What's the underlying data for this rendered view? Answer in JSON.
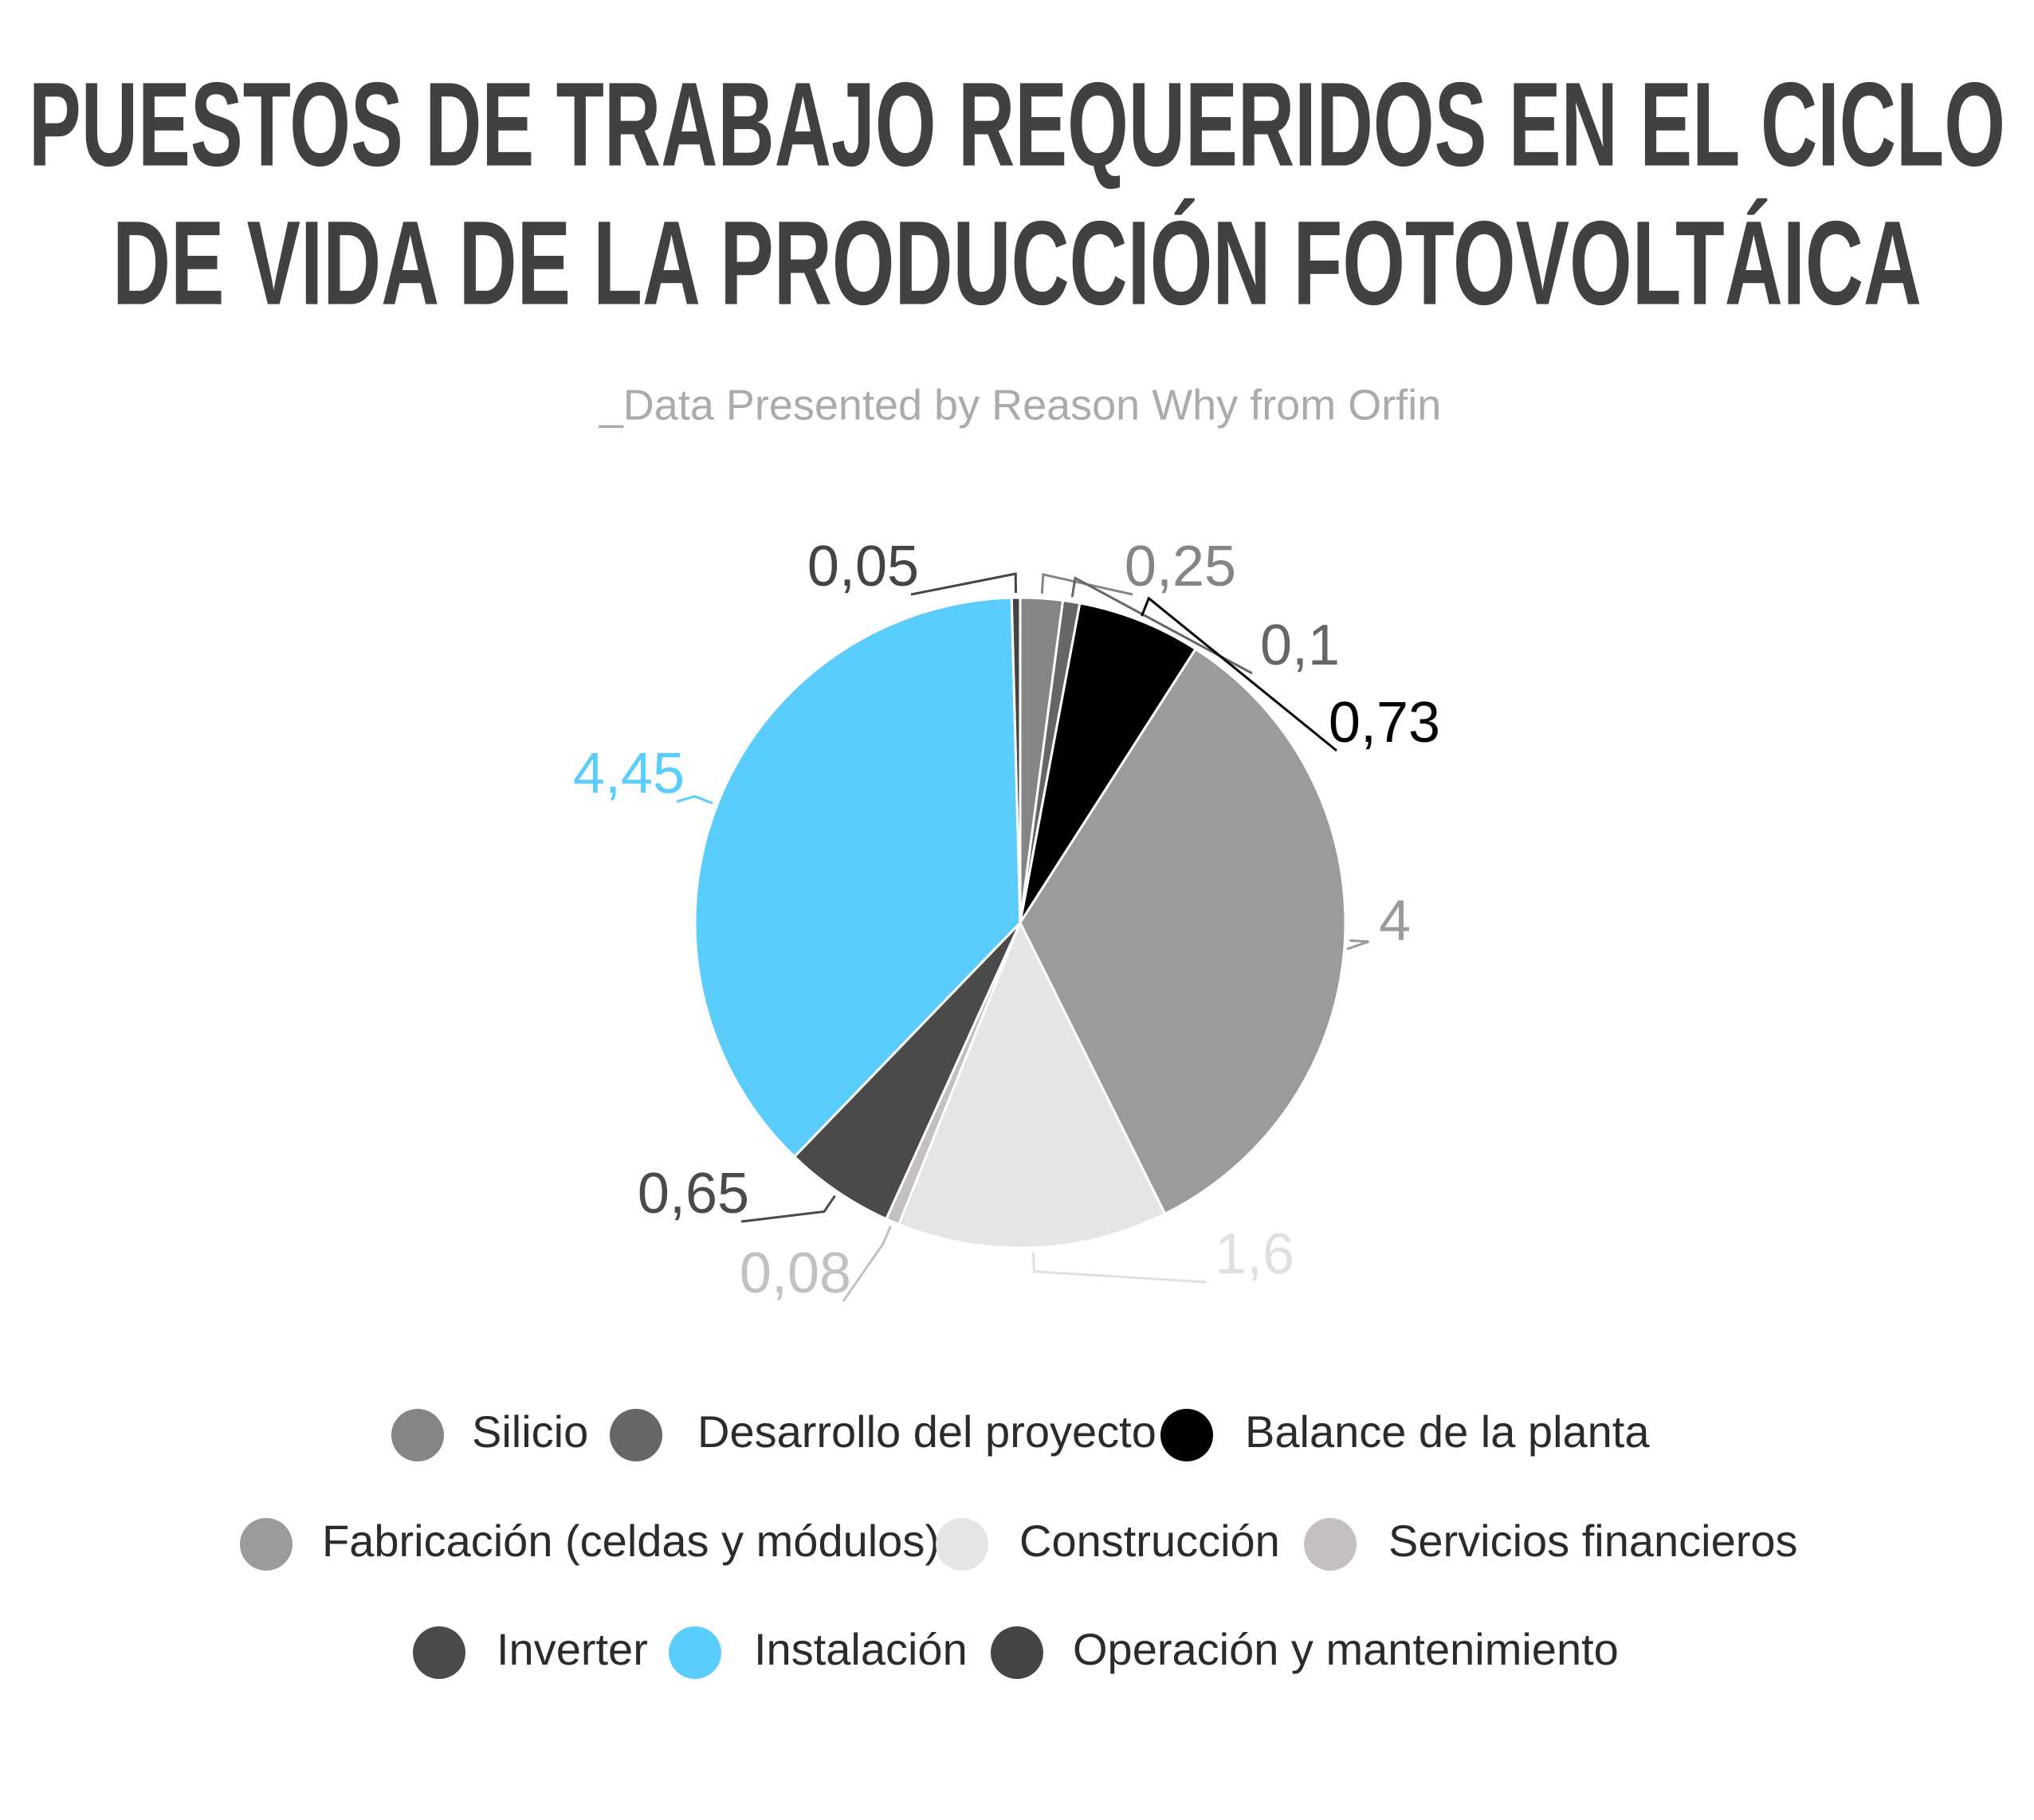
{
  "chart_data": {
    "type": "pie",
    "title": [
      "PUESTOS DE TRABAJO REQUERIDOS EN EL CICLO",
      "DE VIDA DE LA PRODUCCIÓN FOTOVOLTÁICA"
    ],
    "subtitle": "_Data Presented by Reason Why from Orfin",
    "categories": [
      "Silicio",
      "Desarrollo del proyecto",
      "Balance de la planta",
      "Fabricación (celdas y módulos)",
      "Construcción",
      "Servicios financieros",
      "Inverter",
      "Instalación",
      "Operación y mantenimiento"
    ],
    "values": [
      0.25,
      0.1,
      0.73,
      4,
      1.6,
      0.08,
      0.65,
      4.45,
      0.05
    ],
    "value_labels": [
      "0,25",
      "0,1",
      "0,73",
      "4",
      "1,6",
      "0,08",
      "0,65",
      "4,45",
      "0,05"
    ],
    "colors": [
      "#858585",
      "#666666",
      "#000000",
      "#9b9b9b",
      "#e5e5e5",
      "#c4c0c0",
      "#4a4a4a",
      "#5bcdfc",
      "#444444"
    ],
    "label_colors": [
      "#858585",
      "#666666",
      "#000000",
      "#9b9b9b",
      "#e0e0e0",
      "#c4c0c0",
      "#4a4a4a",
      "#5bcdfc",
      "#444444"
    ],
    "legend": "bottom"
  }
}
